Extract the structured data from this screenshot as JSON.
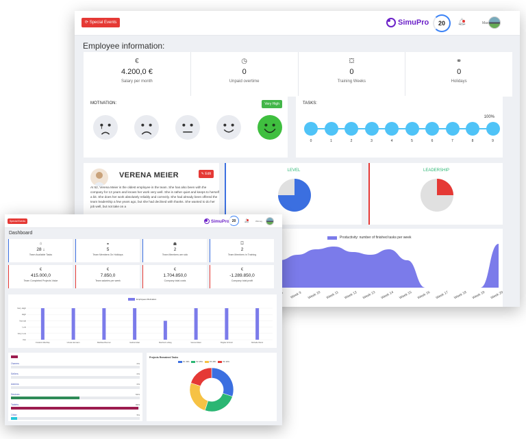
{
  "employee": {
    "topbar": {
      "special_events": "⟳ Special Events",
      "brand": "SimuPro",
      "score": "20",
      "user_name": "Max"
    },
    "title": "Employee information:",
    "stats": [
      {
        "icon": "euro-icon",
        "glyph": "€",
        "value": "4.200,0 €",
        "label": "Salary per month"
      },
      {
        "icon": "clock-icon",
        "glyph": "◷",
        "value": "0",
        "label": "Unpaid overtime"
      },
      {
        "icon": "training-icon",
        "glyph": "⛋",
        "value": "0",
        "label": "Training Weeks"
      },
      {
        "icon": "binoculars-icon",
        "glyph": "⚭",
        "value": "0",
        "label": "Holidays"
      }
    ],
    "motivation": {
      "title": "MOTIVATION:",
      "badge": "Very High",
      "levels": [
        "crying",
        "sad",
        "neutral",
        "happy",
        "very-happy"
      ],
      "active_index": 4
    },
    "tasks": {
      "title": "TASKS:",
      "percent_label": "100%",
      "labels": [
        "0",
        "1",
        "2",
        "3",
        "4",
        "5",
        "6",
        "7",
        "8",
        "9"
      ],
      "completed_fraction": 1.0
    },
    "profile": {
      "name": "VERENA MEIER",
      "edit_label": "✎ Edit",
      "bio": "At 52, Verena Meier is the oldest employee in the team. She has also been with the company for 13 years and knows her work very well. She is rather quiet and keeps to herself a bit. She does her work absolutely reliably and correctly. She had already been offered the team leadership a few years ago, but she had declined with thanks. She wanted to do her job well, but not take on a"
    },
    "level": {
      "title": "LEVEL",
      "fraction": 0.75,
      "color": "#3b6fe0"
    },
    "leadership": {
      "title": "LEADERSHIP",
      "fraction": 0.25,
      "color": "#e53935"
    },
    "productivity": {
      "legend": "Productivity: number of finished tasks per week",
      "weeks": [
        "Week 5",
        "Week 6",
        "Week 7",
        "Week 8",
        "Week 9",
        "Week 10",
        "Week 11",
        "Week 12",
        "Week 13",
        "Week 14",
        "Week 15",
        "Week 16",
        "Week 17",
        "Week 18",
        "Week 19",
        "Week 20"
      ],
      "values": [
        6,
        7,
        7.5,
        5,
        6,
        7,
        7.5,
        6.5,
        6,
        7,
        5,
        0,
        0,
        0,
        0,
        8
      ]
    }
  },
  "dashboard": {
    "topbar": {
      "special_events": "Special Events",
      "brand": "SimuPro",
      "score": "20",
      "user_name": "Winney"
    },
    "title": "Dashboard",
    "kpis_top": [
      {
        "icon": "inbox-icon",
        "glyph": "⌂",
        "value": "28 ↓",
        "label": "Team Available Tasks",
        "accent": "#3b6fe0"
      },
      {
        "icon": "binoculars-icon",
        "glyph": "⚭",
        "value": "5",
        "label": "Team Members On Holidays",
        "accent": "#3b6fe0"
      },
      {
        "icon": "sick-icon",
        "glyph": "☗",
        "value": "2",
        "label": "Team Members are sick",
        "accent": "#3b6fe0"
      },
      {
        "icon": "training-icon",
        "glyph": "⛋",
        "value": "2",
        "label": "Team Members in Training",
        "accent": "#3b6fe0"
      }
    ],
    "kpis_bottom": [
      {
        "icon": "euro-icon",
        "glyph": "€",
        "value": "415.000,0",
        "label": "Team Completed Projects Value",
        "accent": "#e53935"
      },
      {
        "icon": "euro-icon",
        "glyph": "€",
        "value": "7.850,0",
        "label": "Team salaries per week",
        "accent": "#e53935"
      },
      {
        "icon": "euro-icon",
        "glyph": "€",
        "value": "1.704.850,0",
        "label": "Company total costs",
        "accent": "#e53935"
      },
      {
        "icon": "euro-icon",
        "glyph": "€",
        "value": "-1.289.850,0",
        "label": "Company total profit",
        "accent": "#e53935"
      }
    ],
    "motivation_chart": {
      "legend": "Employees Motivation",
      "levels": [
        "Very High",
        "High",
        "Normal",
        "Low",
        "Very Low",
        "Out"
      ],
      "names": [
        "Frederic Allschlep",
        "Ursula Hermann",
        "Matthias Brenner",
        "Gabriel Alsat",
        "Manfred Ludwig",
        "Verena Meier",
        "Brigitte Schmid",
        "Michelle Wurst"
      ],
      "values": [
        5,
        5,
        5,
        5,
        3,
        5,
        5,
        5
      ]
    },
    "progress": [
      {
        "label": "Owners",
        "pct": "0%",
        "fraction": 0,
        "color": "#e53935"
      },
      {
        "label": "Sellers",
        "pct": "0%",
        "fraction": 0,
        "color": "#3b6fe0"
      },
      {
        "label": "Admins",
        "pct": "0%",
        "fraction": 0,
        "color": "#3b6fe0"
      },
      {
        "label": "Devices",
        "pct": "53%",
        "fraction": 0.53,
        "color": "#2e8b57"
      },
      {
        "label": "Tablets",
        "pct": "99%",
        "fraction": 0.99,
        "color": "#9c1c4f"
      },
      {
        "label": "Other",
        "pct": "5%",
        "fraction": 0.05,
        "color": "#26c6da"
      }
    ],
    "donut": {
      "title": "Projects Remained Tasks",
      "legend": [
        "P1: 30%",
        "P2: 25%",
        "P3: 25%",
        "P4: 20%"
      ],
      "values": [
        30,
        25,
        25,
        20
      ],
      "colors": [
        "#3b6fe0",
        "#2bb673",
        "#f6c244",
        "#e53935"
      ]
    }
  }
}
